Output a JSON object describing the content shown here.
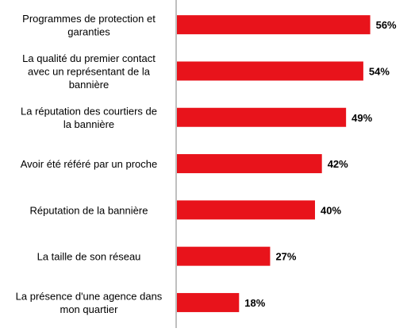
{
  "chart_data": {
    "type": "bar",
    "orientation": "horizontal",
    "categories": [
      [
        "Programmes de protection et",
        "garanties"
      ],
      [
        "La qualité du premier contact",
        "avec un représentant de la",
        "bannière"
      ],
      [
        "La réputation des courtiers de",
        "la bannière"
      ],
      [
        "Avoir été référé par un proche"
      ],
      [
        "Réputation de la bannière"
      ],
      [
        "La taille de son réseau"
      ],
      [
        "La présence d'une agence dans",
        "mon quartier"
      ]
    ],
    "values": [
      56,
      54,
      49,
      42,
      40,
      27,
      18
    ],
    "value_labels": [
      "56%",
      "54%",
      "49%",
      "42%",
      "40%",
      "27%",
      "18%"
    ],
    "value_unit": "%",
    "xlim": [
      0,
      100
    ],
    "grid": false,
    "legend": "none",
    "title": "",
    "xlabel": "",
    "ylabel": ""
  },
  "colors": {
    "bar": "#e8131b",
    "axis": "#7f7f7f",
    "text": "#000000"
  }
}
